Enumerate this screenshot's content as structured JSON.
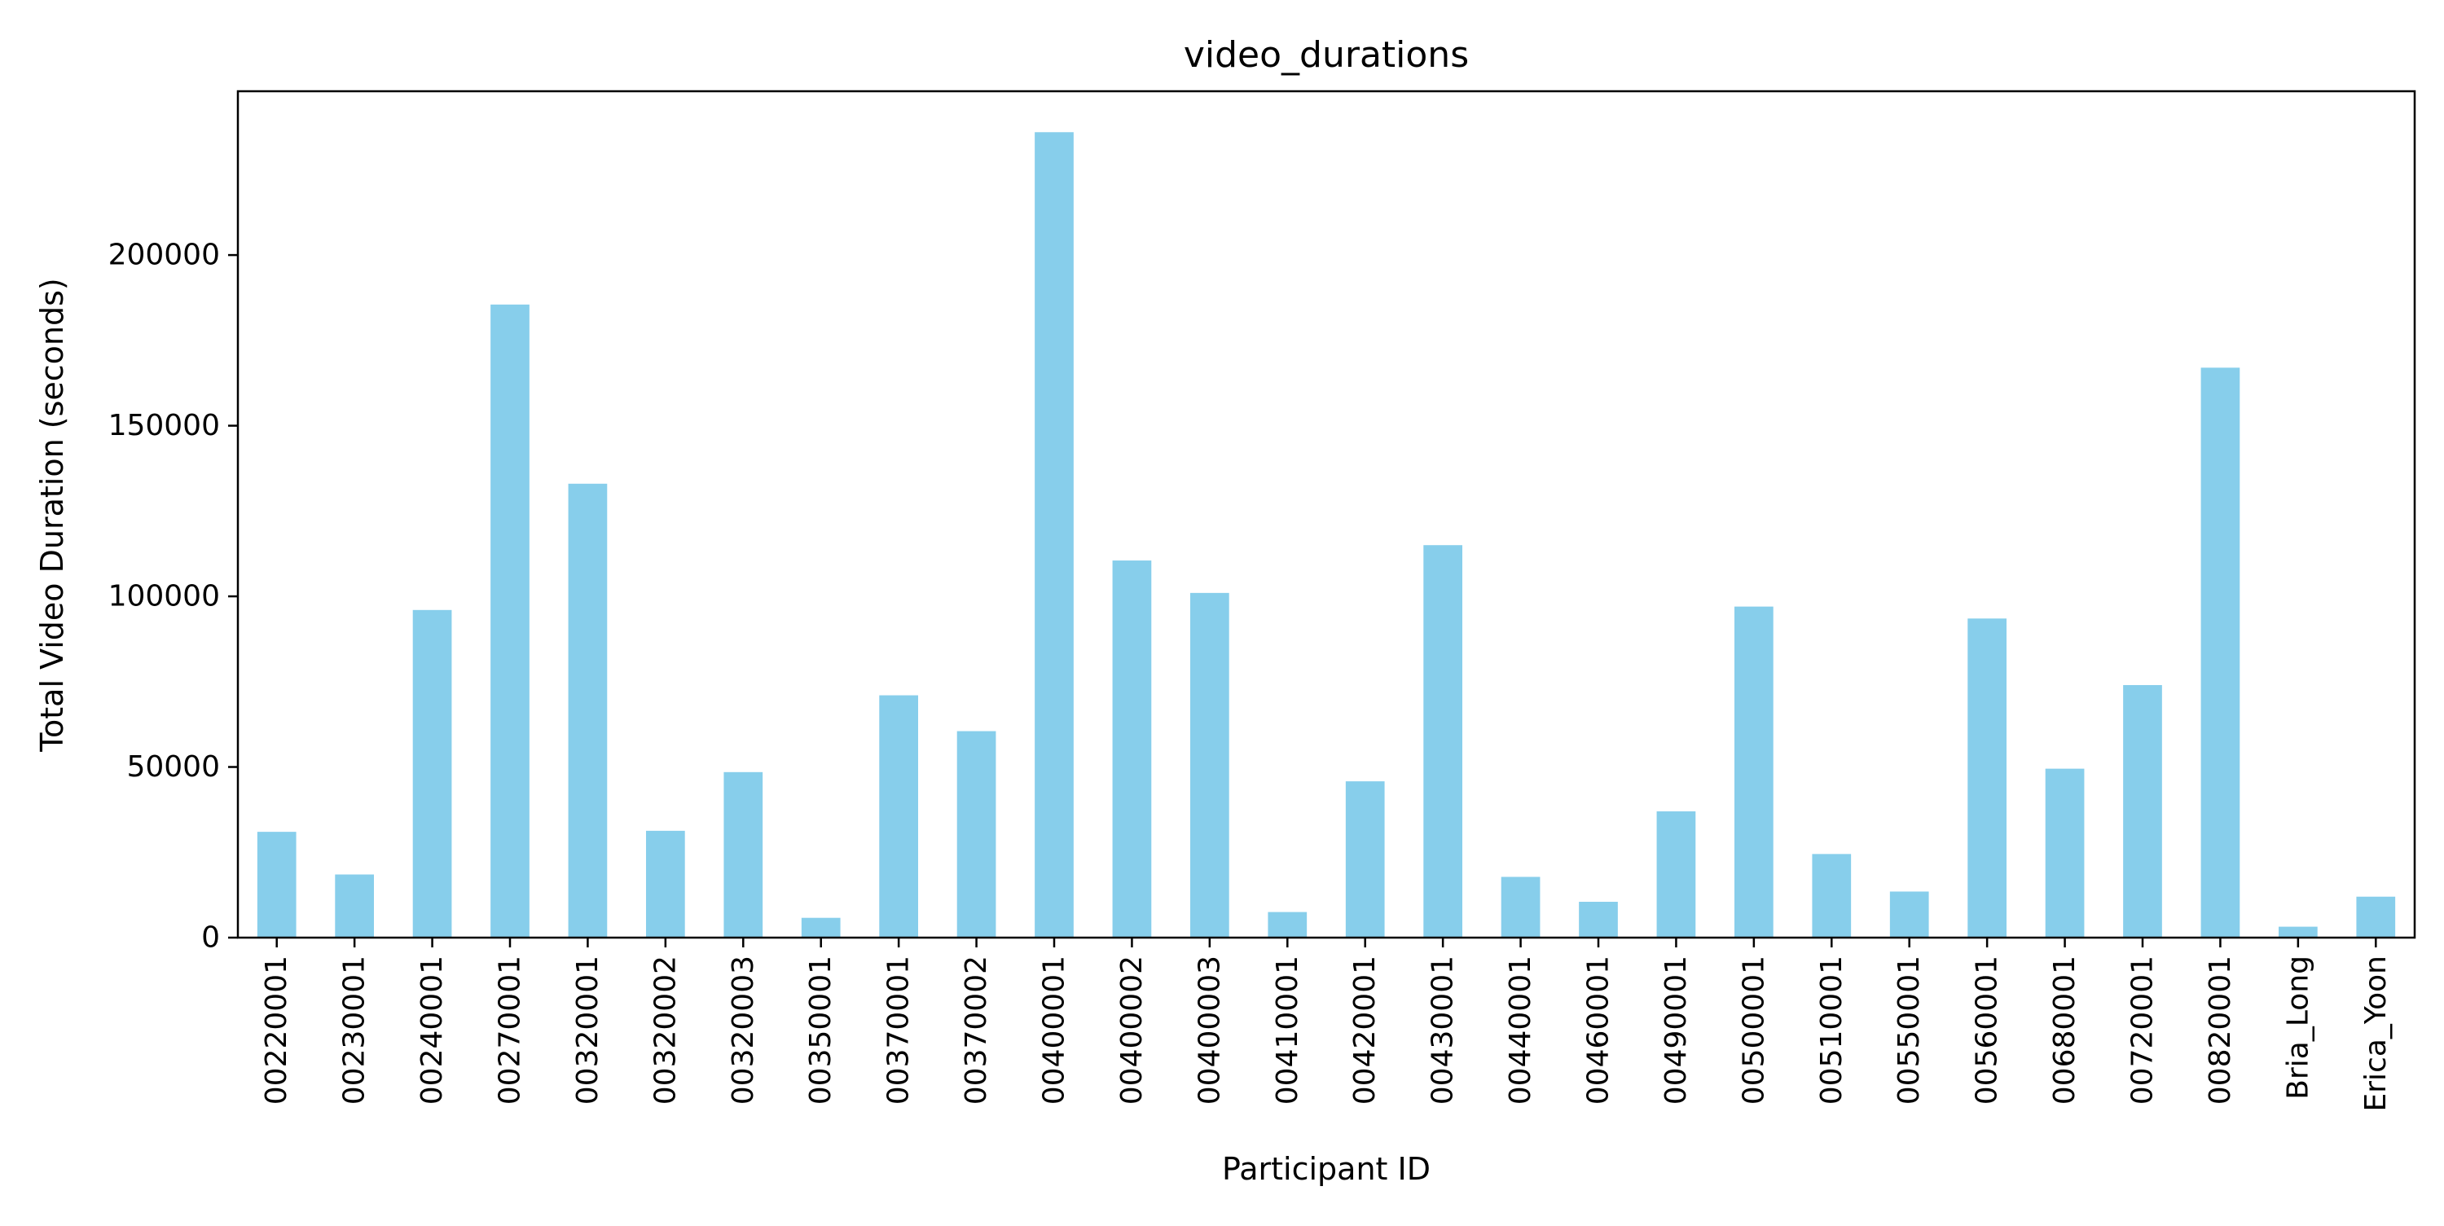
{
  "chart_data": {
    "type": "bar",
    "title": "video_durations",
    "xlabel": "Participant ID",
    "ylabel": "Total Video Duration (seconds)",
    "categories": [
      "00220001",
      "00230001",
      "00240001",
      "00270001",
      "00320001",
      "00320002",
      "00320003",
      "00350001",
      "00370001",
      "00370002",
      "00400001",
      "00400002",
      "00400003",
      "00410001",
      "00420001",
      "00430001",
      "00440001",
      "00460001",
      "00490001",
      "00500001",
      "00510001",
      "00550001",
      "00560001",
      "00680001",
      "00720001",
      "00820001",
      "Bria_Long",
      "Erica_Yoon"
    ],
    "values": [
      31000,
      18500,
      96000,
      185500,
      133000,
      31300,
      48500,
      5800,
      71000,
      60500,
      236000,
      110500,
      101000,
      7500,
      45800,
      115000,
      17800,
      10500,
      37000,
      97000,
      24500,
      13500,
      93500,
      49500,
      74000,
      167000,
      3200,
      12000
    ],
    "ylim": [
      0,
      248000
    ],
    "yticks": [
      0,
      50000,
      100000,
      150000,
      200000
    ],
    "ytick_labels": [
      "0",
      "50000",
      "100000",
      "150000",
      "200000"
    ],
    "bar_color": "#87ceeb",
    "grid": false,
    "legend": "none"
  }
}
